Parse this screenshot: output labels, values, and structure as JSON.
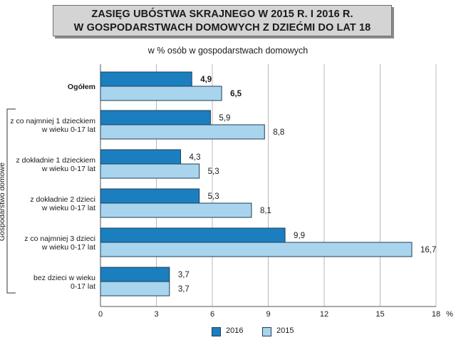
{
  "title": {
    "line1": "ZASIĘG UBÓSTWA SKRAJNEGO W 2015 R. I 2016 R.",
    "line2": "W GOSPODARSTWACH DOMOWYCH Z DZIEĆMI DO LAT 18"
  },
  "subtitle": "w % osób w gospodarstwach domowych",
  "colors": {
    "s2016": "#1b7fbf",
    "s2015": "#a9d4ee",
    "border": "#1f3f55",
    "grid": "#b8b8b8"
  },
  "chart_data": {
    "type": "bar",
    "orientation": "horizontal",
    "title": "ZASIĘG UBÓSTWA SKRAJNEGO W 2015 R. I 2016 R. W GOSPODARSTWACH DOMOWYCH Z DZIEĆMI DO LAT 18",
    "subtitle": "w % osób w gospodarstwach domowych",
    "categories": [
      [
        "Ogółem"
      ],
      [
        "z co najmniej 1 dzieckiem",
        "w wieku 0-17 lat"
      ],
      [
        "z dokładnie 1 dzieckiem",
        "w wieku 0-17 lat"
      ],
      [
        "z dokładnie 2 dzieci",
        "w wieku 0-17 lat"
      ],
      [
        "z co najmniej 3 dzieci",
        "w wieku 0-17 lat"
      ],
      [
        "bez dzieci w wieku",
        "0-17 lat"
      ]
    ],
    "category_group_label": "Gospodarstwo domowe",
    "series": [
      {
        "name": "2016",
        "values": [
          4.9,
          5.9,
          4.3,
          5.3,
          9.9,
          3.7
        ],
        "labels": [
          "4,9",
          "5,9",
          "4,3",
          "5,3",
          "9,9",
          "3,7"
        ],
        "color": "#1b7fbf"
      },
      {
        "name": "2015",
        "values": [
          6.5,
          8.8,
          5.3,
          8.1,
          16.7,
          3.7
        ],
        "labels": [
          "6,5",
          "8,8",
          "5,3",
          "8,1",
          "16,7",
          "3,7"
        ],
        "color": "#a9d4ee"
      }
    ],
    "xlim": [
      0,
      18
    ],
    "xticks": [
      0,
      3,
      6,
      9,
      12,
      15,
      18
    ],
    "xunit": "%",
    "grid": true,
    "legend": "bottom",
    "bold_category": 0
  }
}
